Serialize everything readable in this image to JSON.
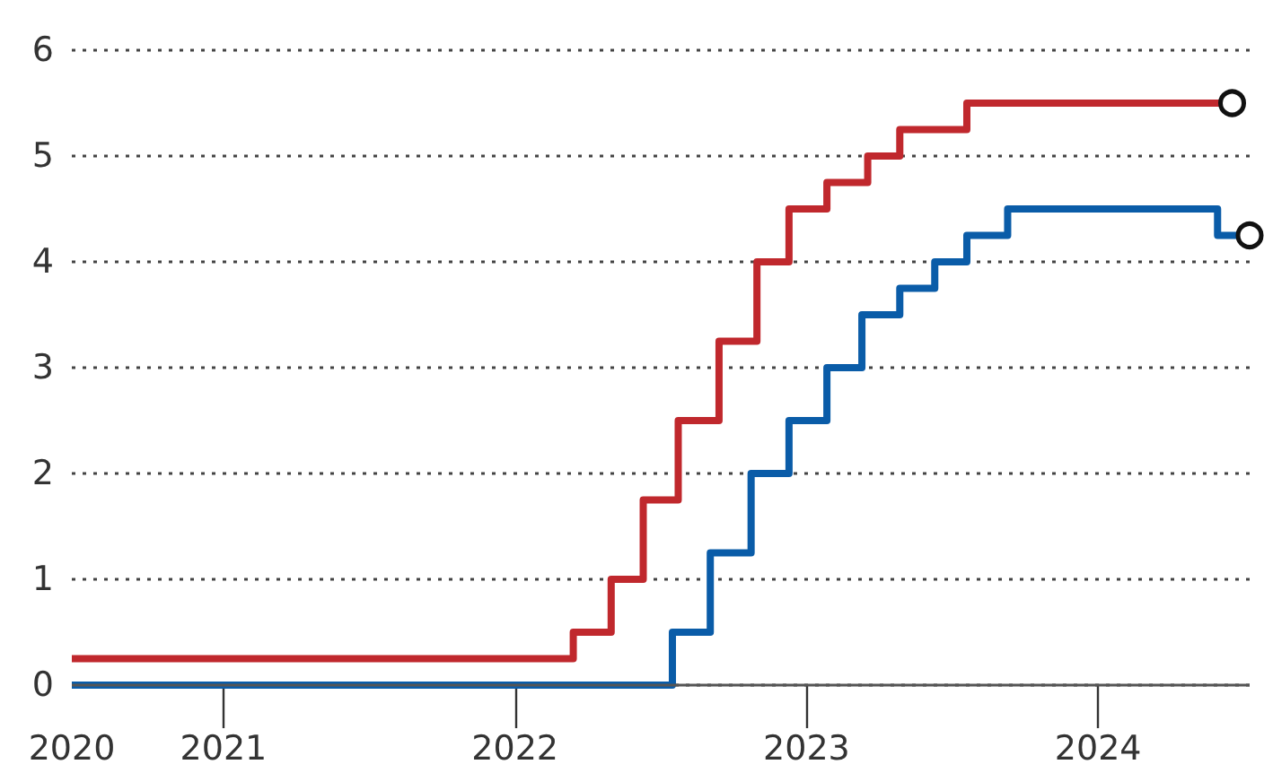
{
  "chart_data": {
    "type": "step",
    "xlim": [
      2020.48,
      2024.52
    ],
    "xticks": [
      {
        "value": 2020.48,
        "label": "2020"
      },
      {
        "value": 2021,
        "label": "2021"
      },
      {
        "value": 2022,
        "label": "2022"
      },
      {
        "value": 2023,
        "label": "2023"
      },
      {
        "value": 2024,
        "label": "2024"
      }
    ],
    "ylim": [
      0,
      6
    ],
    "yticks": [
      0,
      1,
      2,
      3,
      4,
      5,
      6
    ],
    "grid": "y",
    "marker": "none",
    "line_style": "solid",
    "series": [
      {
        "color": "#c0282d",
        "x": [
          2020.48,
          2022.2,
          2022.33,
          2022.44,
          2022.56,
          2022.7,
          2022.83,
          2022.94,
          2023.07,
          2023.21,
          2023.32,
          2023.55,
          2024.46
        ],
        "values": [
          0.25,
          0.5,
          1,
          1.75,
          2.5,
          3.25,
          4,
          4.5,
          4.75,
          5,
          5.25,
          5.5,
          5.5
        ]
      },
      {
        "color": "#0a5ca8",
        "x": [
          2020.48,
          2022.54,
          2022.67,
          2022.81,
          2022.94,
          2023.07,
          2023.19,
          2023.32,
          2023.44,
          2023.55,
          2023.69,
          2024.41,
          2024.52
        ],
        "values": [
          0,
          0.5,
          1.25,
          2,
          2.5,
          3,
          3.5,
          3.75,
          4,
          4.25,
          4.5,
          4.25,
          4.25
        ]
      }
    ]
  }
}
